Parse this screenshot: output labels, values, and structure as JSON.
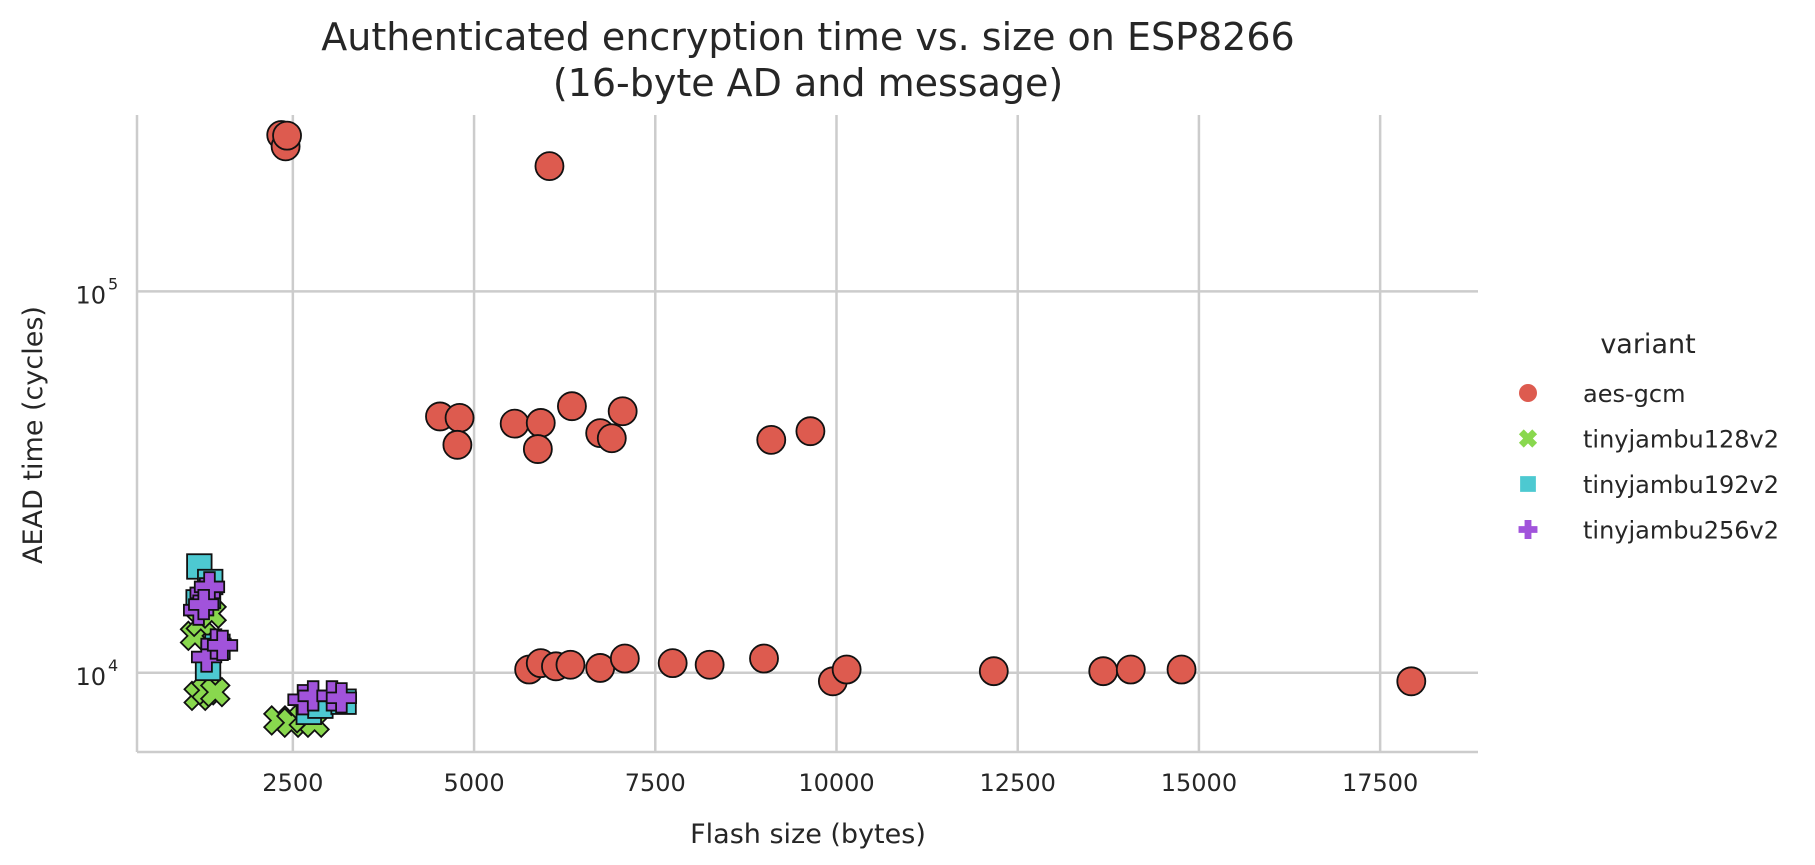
{
  "chart_data": {
    "type": "scatter",
    "title": "Authenticated encryption time vs. size on ESP8266",
    "subtitle": "(16-byte AD and message)",
    "xlabel": "Flash size (bytes)",
    "ylabel": "AEAD time (cycles)",
    "xlim": [
      350,
      18850
    ],
    "ylim": [
      6200,
      290000
    ],
    "y_scale": "log",
    "x_ticks": [
      "2500",
      "5000",
      "7500",
      "10000",
      "12500",
      "15000",
      "17500"
    ],
    "y_ticks": [
      {
        "base": "10",
        "exp": "4",
        "value": 10000
      },
      {
        "base": "10",
        "exp": "5",
        "value": 100000
      }
    ],
    "grid": true,
    "legend_title": "variant",
    "legend_position": "right",
    "series": [
      {
        "name": "aes-gcm",
        "marker": "circle",
        "color": "#dd5b4f",
        "points": [
          [
            2340,
            257000
          ],
          [
            2400,
            240000
          ],
          [
            2420,
            256000
          ],
          [
            6040,
            213000
          ],
          [
            4530,
            47000
          ],
          [
            4800,
            46600
          ],
          [
            4770,
            39600
          ],
          [
            5560,
            45000
          ],
          [
            5920,
            45200
          ],
          [
            5880,
            38600
          ],
          [
            6350,
            50000
          ],
          [
            6740,
            42500
          ],
          [
            6900,
            41200
          ],
          [
            7050,
            48500
          ],
          [
            9100,
            40800
          ],
          [
            9640,
            43000
          ],
          [
            5760,
            10200
          ],
          [
            5920,
            10600
          ],
          [
            6130,
            10400
          ],
          [
            6330,
            10500
          ],
          [
            6740,
            10300
          ],
          [
            7080,
            10900
          ],
          [
            7740,
            10600
          ],
          [
            8250,
            10500
          ],
          [
            9000,
            10900
          ],
          [
            9950,
            9500
          ],
          [
            10140,
            10200
          ],
          [
            12170,
            10100
          ],
          [
            13680,
            10100
          ],
          [
            14060,
            10200
          ],
          [
            14760,
            10200
          ],
          [
            17930,
            9500
          ]
        ]
      },
      {
        "name": "tinyjambu128v2",
        "marker": "x",
        "color": "#89d84e",
        "points": [
          [
            1150,
            12500
          ],
          [
            1230,
            13600
          ],
          [
            1380,
            14300
          ],
          [
            1200,
            8700
          ],
          [
            1310,
            9000
          ],
          [
            1430,
            8900
          ],
          [
            2300,
            7500
          ],
          [
            2480,
            7400
          ],
          [
            2650,
            7600
          ],
          [
            2800,
            7400
          ]
        ]
      },
      {
        "name": "tinyjambu192v2",
        "marker": "square",
        "color": "#4dc9d1",
        "points": [
          [
            1210,
            19000
          ],
          [
            1360,
            17300
          ],
          [
            1330,
            15900
          ],
          [
            1200,
            15300
          ],
          [
            1330,
            10300
          ],
          [
            1460,
            11700
          ],
          [
            2720,
            7900
          ],
          [
            2880,
            8200
          ],
          [
            3200,
            8400
          ]
        ]
      },
      {
        "name": "tinyjambu256v2",
        "marker": "plus",
        "color": "#a153db",
        "points": [
          [
            1290,
            16200
          ],
          [
            1350,
            16800
          ],
          [
            1200,
            14600
          ],
          [
            1270,
            15100
          ],
          [
            1310,
            11000
          ],
          [
            1440,
            11900
          ],
          [
            1530,
            11800
          ],
          [
            2640,
            8500
          ],
          [
            2780,
            8700
          ],
          [
            3040,
            8700
          ],
          [
            3170,
            8600
          ]
        ]
      }
    ]
  }
}
